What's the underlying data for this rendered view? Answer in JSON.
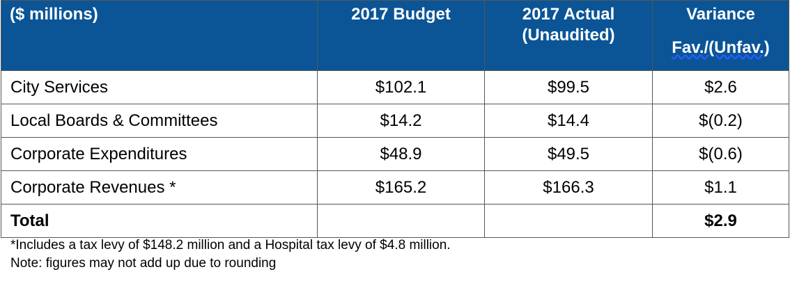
{
  "table": {
    "headers": {
      "label": "($ millions)",
      "budget": "2017 Budget",
      "actual_line1": "2017 Actual",
      "actual_line2": "(Unaudited)",
      "variance_line1": "Variance",
      "variance_line2": "Fav./(Unfav.)"
    },
    "rows": [
      {
        "label": "City Services",
        "budget": "$102.1",
        "actual": "$99.5",
        "variance": "$2.6"
      },
      {
        "label": "Local Boards & Committees",
        "budget": "$14.2",
        "actual": "$14.4",
        "variance": "$(0.2)"
      },
      {
        "label": "Corporate Expenditures",
        "budget": "$48.9",
        "actual": "$49.5",
        "variance": "$(0.6)"
      },
      {
        "label": "Corporate Revenues *",
        "budget": "$165.2",
        "actual": "$166.3",
        "variance": "$1.1"
      }
    ],
    "total": {
      "label": "Total",
      "budget": "",
      "actual": "",
      "variance": "$2.9"
    }
  },
  "notes": {
    "footnote": "*Includes a tax levy of $148.2 million and a Hospital tax levy of $4.8 million.",
    "rounding": "Note: figures may not add up due to rounding"
  },
  "colors": {
    "header_background": "#0b5597",
    "header_text": "#ffffff"
  }
}
